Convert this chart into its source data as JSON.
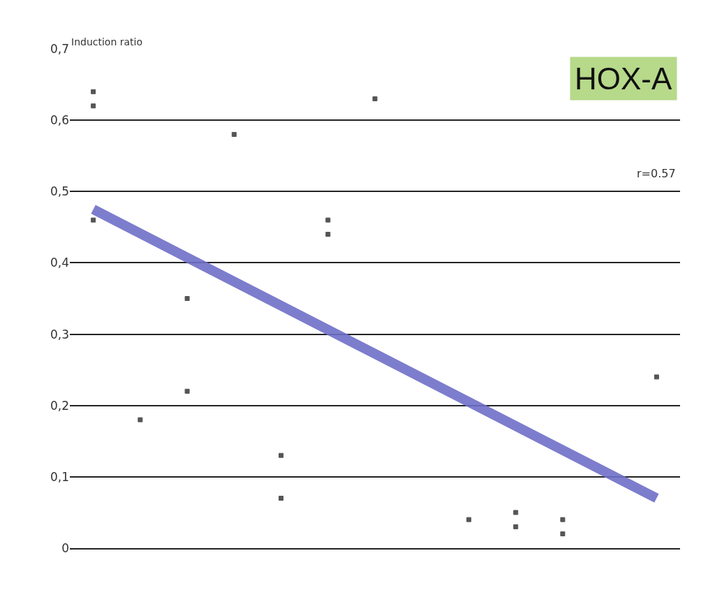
{
  "chart_data": {
    "type": "scatter",
    "ylabel": "Induction ratio",
    "categories": [
      null,
      null,
      null,
      null,
      null,
      null,
      null,
      null,
      null,
      null,
      null,
      null,
      null
    ],
    "series": [
      {
        "color": "#555555",
        "marker": "square",
        "values": [
          0.64,
          null,
          0.35,
          0.58,
          0.13,
          0.46,
          0.63,
          null,
          0.04,
          0.05,
          0.04,
          null,
          0.24
        ]
      },
      {
        "color": "#555555",
        "marker": "square",
        "values": [
          0.62,
          0.18,
          0.22,
          null,
          0.07,
          0.44,
          null,
          null,
          null,
          0.03,
          0.02,
          null,
          null
        ]
      },
      {
        "color": "#555555",
        "marker": "square",
        "values": [
          0.46,
          null,
          null,
          null,
          null,
          null,
          null,
          null,
          null,
          null,
          null,
          null,
          null
        ]
      },
      {
        "type": "line",
        "color": "#6f6fc8",
        "values": [
          0.475,
          null,
          null,
          null,
          null,
          null,
          null,
          null,
          null,
          null,
          null,
          null,
          0.07
        ]
      }
    ],
    "ylim": [
      0,
      0.7
    ],
    "yticks": [
      {
        "value": 0,
        "label": "0"
      },
      {
        "value": 0.1,
        "label": "0,1"
      },
      {
        "value": 0.2,
        "label": "0,2"
      },
      {
        "value": 0.3,
        "label": "0,3"
      },
      {
        "value": 0.4,
        "label": "0,4"
      },
      {
        "value": 0.5,
        "label": "0,5"
      },
      {
        "value": 0.6,
        "label": "0,6"
      },
      {
        "value": 0.7,
        "label": "0,7"
      }
    ],
    "grid": "y",
    "legend": false,
    "annotations": [
      "HOX-A",
      "r=0.57"
    ]
  }
}
